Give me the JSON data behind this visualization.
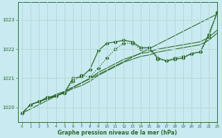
{
  "title": "Graphe pression niveau de la mer (hPa)",
  "background_color": "#c8eaf0",
  "grid_color": "#b8d8d8",
  "line_color": "#2d6a2d",
  "xlim": [
    -0.5,
    23
  ],
  "ylim": [
    1019.5,
    1023.6
  ],
  "yticks": [
    1020,
    1021,
    1022,
    1023
  ],
  "xticks": [
    0,
    1,
    2,
    3,
    4,
    5,
    6,
    7,
    8,
    9,
    10,
    11,
    12,
    13,
    14,
    15,
    16,
    17,
    18,
    19,
    20,
    21,
    22,
    23
  ],
  "series": [
    {
      "x": [
        0,
        23
      ],
      "y": [
        1019.8,
        1023.2
      ],
      "marker": null,
      "linewidth": 0.8,
      "linestyle": "-"
    },
    {
      "x": [
        0,
        1,
        2,
        3,
        4,
        5,
        6,
        7,
        8,
        9,
        10,
        11,
        12,
        13,
        14,
        15,
        16,
        17,
        18,
        19,
        20,
        21,
        22,
        23
      ],
      "y": [
        1019.8,
        1020.1,
        1020.2,
        1020.35,
        1020.4,
        1020.5,
        1021.0,
        1021.05,
        1021.3,
        1021.95,
        1022.2,
        1022.25,
        1022.3,
        1022.25,
        1022.05,
        1022.05,
        1021.7,
        1021.6,
        1021.65,
        1021.7,
        1021.85,
        1021.9,
        1022.5,
        1023.25
      ],
      "marker": "D",
      "markersize": 2.2,
      "linewidth": 0.9,
      "linestyle": "-"
    },
    {
      "x": [
        0,
        1,
        2,
        3,
        4,
        5,
        6,
        7,
        8,
        9,
        10,
        11,
        12,
        13,
        14,
        15,
        16,
        17,
        18,
        19,
        20,
        21,
        22,
        23
      ],
      "y": [
        1019.8,
        1020.1,
        1020.2,
        1020.3,
        1020.4,
        1020.5,
        1020.65,
        1020.75,
        1020.9,
        1021.1,
        1021.25,
        1021.4,
        1021.55,
        1021.65,
        1021.75,
        1021.8,
        1021.9,
        1021.95,
        1022.0,
        1022.05,
        1022.1,
        1022.15,
        1022.3,
        1022.55
      ],
      "marker": null,
      "linewidth": 0.8,
      "linestyle": "-"
    },
    {
      "x": [
        0,
        1,
        2,
        3,
        4,
        5,
        6,
        7,
        8,
        9,
        10,
        11,
        12,
        13,
        14,
        15,
        16,
        17,
        18,
        19,
        20,
        21,
        22,
        23
      ],
      "y": [
        1019.8,
        1020.1,
        1020.2,
        1020.3,
        1020.45,
        1020.55,
        1020.7,
        1020.85,
        1021.0,
        1021.2,
        1021.35,
        1021.5,
        1021.65,
        1021.75,
        1021.85,
        1021.9,
        1022.0,
        1022.05,
        1022.1,
        1022.15,
        1022.2,
        1022.25,
        1022.4,
        1022.65
      ],
      "marker": null,
      "linewidth": 0.8,
      "linestyle": "-"
    },
    {
      "x": [
        0,
        1,
        2,
        3,
        4,
        5,
        6,
        7,
        8,
        9,
        10,
        11,
        12,
        13,
        14,
        15,
        16,
        17,
        18,
        19,
        20,
        21,
        22,
        23
      ],
      "y": [
        1019.8,
        1020.1,
        1020.2,
        1020.35,
        1020.4,
        1020.5,
        1020.9,
        1021.1,
        1021.05,
        1021.35,
        1021.7,
        1022.0,
        1022.2,
        1022.2,
        1022.0,
        1022.0,
        1021.65,
        1021.6,
        1021.7,
        1021.75,
        1021.85,
        1021.9,
        1022.4,
        1023.25
      ],
      "marker": "D",
      "markersize": 2.2,
      "linewidth": 0.9,
      "linestyle": ":"
    }
  ]
}
